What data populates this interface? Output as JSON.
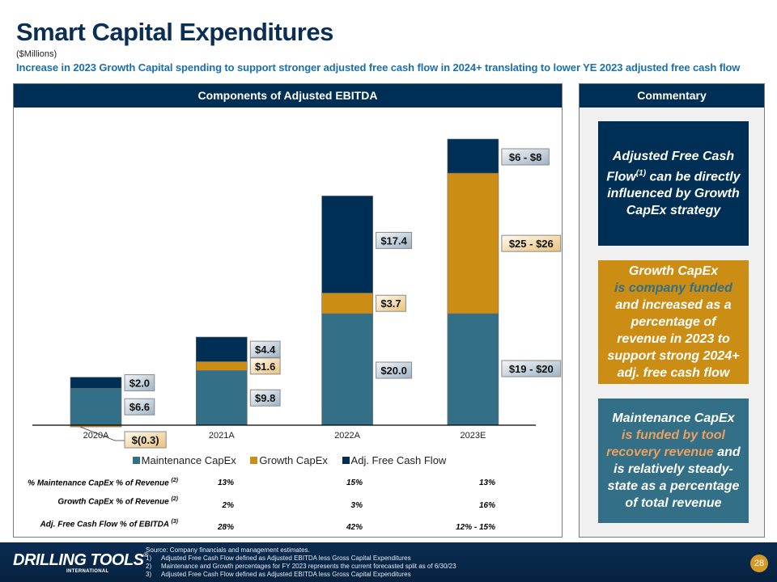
{
  "header": {
    "title": "Smart Capital Expenditures",
    "units": "($Millions)",
    "subtitle": "Increase in 2023 Growth Capital spending to support stronger adjusted free cash flow in 2024+ translating to lower YE 2023 adjusted free cash flow"
  },
  "panels": {
    "chart_header": "Components of Adjusted EBITDA",
    "commentary_header": "Commentary"
  },
  "colors": {
    "navy": "#002f56",
    "gold": "#cc8d15",
    "teal": "#336f87",
    "subtitle_blue": "#1a6fb0"
  },
  "chart_data": {
    "type": "bar",
    "stacked": true,
    "title": "Components of Adjusted EBITDA",
    "xlabel": "",
    "ylabel": "$Millions",
    "categories": [
      "2020A",
      "2021A",
      "2022A",
      "2023E"
    ],
    "series": [
      {
        "name": "Maintenance CapEx",
        "color": "#336f87",
        "values": [
          6.6,
          9.8,
          20.0,
          20.0
        ],
        "labels": [
          "$6.6",
          "$9.8",
          "$20.0",
          "$19 - $20"
        ]
      },
      {
        "name": "Growth CapEx",
        "color": "#cc8d15",
        "values": [
          -0.3,
          1.6,
          3.7,
          25.2
        ],
        "labels": [
          "$(0.3)",
          "$1.6",
          "$3.7",
          "$25 - $26"
        ]
      },
      {
        "name": "Adj. Free Cash Flow",
        "color": "#002f56",
        "values": [
          2.0,
          4.4,
          17.4,
          6.1
        ],
        "labels": [
          "$2.0",
          "$4.4",
          "$17.4",
          "$6 - $8"
        ]
      }
    ],
    "ylim": [
      -0.5,
      52
    ],
    "grid": false,
    "legend": "bottom"
  },
  "legend": [
    {
      "label": "Maintenance CapEx",
      "color": "#336f87"
    },
    {
      "label": "Growth CapEx",
      "color": "#cc8d15"
    },
    {
      "label": "Adj. Free Cash Flow",
      "color": "#002f56"
    }
  ],
  "metrics_table": {
    "rows": [
      {
        "label": "% Maintenance CapEx % of Revenue",
        "note": "(2)",
        "values": [
          "13%",
          "15%",
          "13%"
        ]
      },
      {
        "label": "Growth CapEx % of Revenue",
        "note": "(2)",
        "values": [
          "2%",
          "3%",
          "16%"
        ]
      },
      {
        "label": "Adj. Free Cash Flow % of EBITDA",
        "note": "(3)",
        "values": [
          "28%",
          "42%",
          "12% - 15%"
        ]
      }
    ]
  },
  "commentary": {
    "box1": {
      "pre": "Adjusted Free Cash Flow",
      "sup": "(1)",
      "post": " can be directly influenced by Growth CapEx strategy"
    },
    "box2": {
      "line1": "Growth CapEx",
      "highlight": "is company funded",
      "rest": "and increased as a percentage of revenue in 2023 to support strong 2024+ adj. free cash flow"
    },
    "box3": {
      "line1": "Maintenance CapEx",
      "highlight": "is funded by tool recovery revenue",
      "rest": " and is relatively steady-state as a percentage of total revenue"
    }
  },
  "footer": {
    "logo_main": "DRILLING TOOLS",
    "logo_reg": "®",
    "logo_sub": "INTERNATIONAL",
    "source": "Source: Company financials and management estimates.",
    "notes": [
      {
        "num": "1)",
        "text": "Adjusted Free Cash Flow defined as Adjusted EBITDA less Gross Capital Expenditures"
      },
      {
        "num": "2)",
        "text": "Maintenance and Growth percentages for FY 2023 represents the current forecasted split as of 6/30/23"
      },
      {
        "num": "3)",
        "text": "Adjusted Free Cash Flow defined as Adjusted EBITDA less Gross Capital Expenditures"
      }
    ],
    "page_number": "28"
  }
}
